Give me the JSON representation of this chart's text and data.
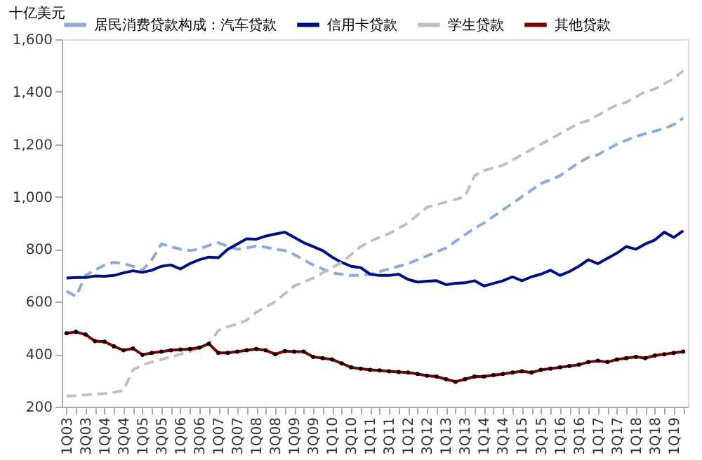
{
  "chart_data": {
    "type": "line",
    "ylabel": "十亿美元",
    "categories": [
      "1Q03",
      null,
      "3Q03",
      null,
      "1Q04",
      null,
      "3Q04",
      null,
      "1Q05",
      null,
      "3Q05",
      null,
      "1Q06",
      null,
      "3Q06",
      null,
      "1Q07",
      null,
      "3Q07",
      null,
      "1Q08",
      null,
      "3Q08",
      null,
      "1Q09",
      null,
      "3Q09",
      null,
      "1Q10",
      null,
      "3Q10",
      null,
      "1Q11",
      null,
      "3Q11",
      null,
      "1Q12",
      null,
      "3Q12",
      null,
      "1Q13",
      null,
      "3Q13",
      null,
      "1Q14",
      null,
      "3Q14",
      null,
      "1Q15",
      null,
      "3Q15",
      null,
      "1Q16",
      null,
      "3Q16",
      null,
      "1Q17",
      null,
      "3Q17",
      null,
      "1Q18",
      null,
      "3Q18",
      null,
      "1Q19",
      null
    ],
    "series": [
      {
        "name": "居民消费贷款构成：汽车贷款",
        "color": "#8eaadb",
        "line_style": "dashed",
        "values": [
          640,
          620,
          700,
          720,
          740,
          750,
          745,
          735,
          720,
          760,
          820,
          810,
          800,
          795,
          800,
          815,
          825,
          810,
          800,
          805,
          812,
          808,
          800,
          795,
          780,
          760,
          740,
          725,
          710,
          705,
          700,
          700,
          705,
          715,
          725,
          735,
          745,
          760,
          775,
          790,
          805,
          830,
          855,
          880,
          900,
          925,
          950,
          975,
          1000,
          1025,
          1050,
          1065,
          1080,
          1105,
          1130,
          1150,
          1160,
          1180,
          1200,
          1215,
          1230,
          1240,
          1250,
          1260,
          1275,
          1300
        ]
      },
      {
        "name": "信用卡贷款",
        "color": "#000f80",
        "line_style": "solid",
        "values": [
          690,
          692,
          692,
          698,
          697,
          700,
          710,
          718,
          712,
          720,
          735,
          740,
          725,
          745,
          760,
          770,
          768,
          800,
          820,
          840,
          838,
          850,
          858,
          865,
          845,
          825,
          810,
          795,
          770,
          750,
          735,
          730,
          705,
          700,
          700,
          705,
          685,
          675,
          678,
          680,
          665,
          670,
          672,
          680,
          660,
          670,
          680,
          695,
          680,
          695,
          705,
          720,
          700,
          715,
          735,
          760,
          745,
          765,
          785,
          810,
          800,
          820,
          835,
          865,
          845,
          870
        ]
      },
      {
        "name": "学生贷款",
        "color": "#bfbfbf",
        "line_style": "dashed",
        "values": [
          240,
          242,
          245,
          248,
          250,
          255,
          262,
          340,
          360,
          370,
          380,
          390,
          400,
          410,
          425,
          440,
          490,
          505,
          515,
          530,
          560,
          580,
          600,
          630,
          660,
          675,
          690,
          710,
          730,
          750,
          780,
          810,
          830,
          845,
          860,
          880,
          900,
          930,
          960,
          970,
          980,
          990,
          1000,
          1080,
          1100,
          1110,
          1120,
          1140,
          1160,
          1180,
          1200,
          1220,
          1240,
          1260,
          1280,
          1290,
          1310,
          1330,
          1350,
          1360,
          1380,
          1400,
          1410,
          1430,
          1450,
          1480
        ]
      },
      {
        "name": "其他贷款",
        "color": "#7f0000",
        "line_style": "solid",
        "marker": "circle",
        "values": [
          480,
          485,
          475,
          450,
          448,
          430,
          415,
          422,
          398,
          405,
          410,
          415,
          418,
          420,
          425,
          440,
          405,
          405,
          410,
          415,
          420,
          415,
          400,
          412,
          410,
          410,
          390,
          385,
          380,
          365,
          350,
          345,
          340,
          338,
          335,
          332,
          330,
          325,
          318,
          315,
          305,
          295,
          305,
          315,
          315,
          320,
          325,
          330,
          335,
          330,
          340,
          345,
          350,
          355,
          360,
          370,
          375,
          370,
          380,
          385,
          390,
          385,
          395,
          400,
          405,
          410
        ]
      }
    ],
    "ylim": [
      200,
      1600
    ],
    "yticks": [
      200,
      400,
      600,
      800,
      {
        "value": 1000,
        "label": "1,000"
      },
      {
        "value": 1200,
        "label": "1,200"
      },
      {
        "value": 1400,
        "label": "1,400"
      },
      {
        "value": 1600,
        "label": "1,600"
      }
    ],
    "grid": false,
    "legend": "top"
  }
}
